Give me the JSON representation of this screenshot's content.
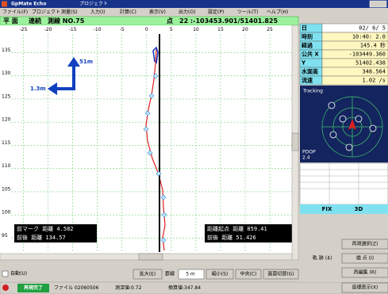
{
  "window": {
    "title": "GpMate Echo",
    "project": "プロジェクト",
    "menu": [
      "ファイル(F)",
      "プロジェクト",
      "測量(S)",
      "入力(I)",
      "計算(C)",
      "表示(V)",
      "出力(O)",
      "設定(P)",
      "ツール(T)",
      "ヘルプ(H)"
    ]
  },
  "header": {
    "mode": "平 面",
    "continuous": "連続",
    "line": "測線 NO.75",
    "point_label": "点",
    "point": "22 :-103453.901/51401.825"
  },
  "plot": {
    "xticks": [
      -25,
      -20,
      -15,
      -10,
      -5,
      0,
      5,
      10,
      15,
      20,
      25
    ],
    "yticks": [
      135,
      130,
      125,
      120,
      115,
      110,
      105,
      100,
      95
    ],
    "xlim": [
      -27.5,
      29.5
    ],
    "ylim": [
      92,
      139
    ],
    "arrow_north": "51m",
    "arrow_west": "1.3m",
    "info_left": [
      "前マーク 距離  4.582",
      "前後  距離 134.57"
    ],
    "info_right": [
      "距離起点 距離 859.41",
      "前後  距離  51.426"
    ]
  },
  "toolbar": {
    "auto": "自動(U)",
    "zoom_in": "拡大(E)",
    "grid_label": "罫線",
    "grid_value": "5 m",
    "zoom_out": "縮小(S)",
    "center": "中央(C)",
    "switch": "画面切替(G)"
  },
  "status": {
    "state": "再現完了",
    "file": "ファイル 02060506",
    "depth": "測深値:0.72",
    "converted": "換算値:347.84"
  },
  "panel": {
    "rows": [
      [
        "日",
        "02/ 6/ 5"
      ],
      [
        "時刻",
        "10:40: 2.0"
      ],
      [
        "経過",
        "145.4 秒"
      ],
      [
        "公共 X",
        "-103449.360"
      ],
      [
        "Y",
        "51402.438"
      ],
      [
        "水面高",
        "348.564"
      ],
      [
        "流速",
        "1.02 /s"
      ]
    ],
    "tracking": "Tracking",
    "pdop": "PDOP",
    "pdop_value": "2.4",
    "fix": "FIX",
    "fix_mode": "3D"
  },
  "side_buttons": {
    "replay_select": "再現選択(Z)",
    "track": "軌 跡 (4)",
    "plot_point": "描 点 (I)",
    "reedit": "再編集 (R)",
    "coords": "座標表示(X)"
  }
}
